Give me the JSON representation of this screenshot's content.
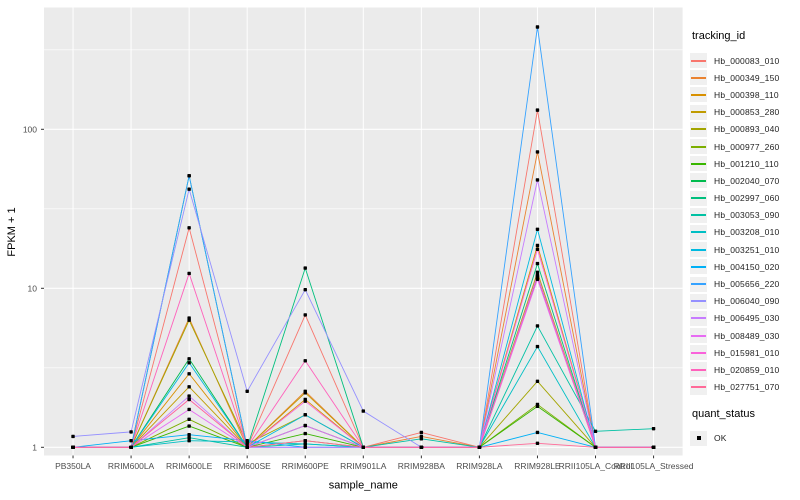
{
  "chart_data": {
    "type": "line",
    "title": "",
    "xlabel": "sample_name",
    "ylabel": "FPKM + 1",
    "y_scale": "log10",
    "y_ticks": [
      1,
      10,
      100
    ],
    "y_tick_labels": [
      "1",
      "10",
      "100"
    ],
    "y_minor_ticks": [
      3.1623,
      31.623,
      316.23
    ],
    "ylim": [
      0.93,
      500
    ],
    "grid": "on",
    "legend_position": "right",
    "categories": [
      "PB350LA",
      "RRIM600LA",
      "RRIM600LE",
      "RRIM600SE",
      "RRIM600PE",
      "RRIM901LA",
      "RRIM928BA",
      "RRIM928LA",
      "RRIM928LE",
      "RRII105LA_Control",
      "RRII105LA_Stressed"
    ],
    "series": [
      {
        "name": "Hb_000083_010",
        "color": "#F8766D",
        "values": [
          1.0,
          1.0,
          24.0,
          1.0,
          6.8,
          1.0,
          1.24,
          1.0,
          132.0,
          1.0,
          1.0
        ]
      },
      {
        "name": "Hb_000349_150",
        "color": "#EA8331",
        "values": [
          1.0,
          1.0,
          6.5,
          1.0,
          2.25,
          1.0,
          1.17,
          1.0,
          72.0,
          1.0,
          1.0
        ]
      },
      {
        "name": "Hb_000398_110",
        "color": "#D89000",
        "values": [
          1.0,
          1.0,
          2.9,
          1.0,
          2.0,
          1.0,
          1.0,
          1.0,
          18.6,
          1.0,
          1.0
        ]
      },
      {
        "name": "Hb_000853_280",
        "color": "#C09B00",
        "values": [
          1.0,
          1.0,
          2.4,
          1.0,
          2.2,
          1.0,
          1.0,
          1.0,
          12.6,
          1.0,
          1.0
        ]
      },
      {
        "name": "Hb_000893_040",
        "color": "#A3A500",
        "values": [
          1.0,
          1.0,
          6.3,
          1.05,
          1.6,
          1.0,
          1.0,
          1.0,
          2.6,
          1.0,
          1.0
        ]
      },
      {
        "name": "Hb_000977_260",
        "color": "#7CAE00",
        "values": [
          1.0,
          1.0,
          1.5,
          1.0,
          1.1,
          1.0,
          1.0,
          1.0,
          1.86,
          1.0,
          1.0
        ]
      },
      {
        "name": "Hb_001210_110",
        "color": "#39B600",
        "values": [
          1.0,
          1.0,
          1.36,
          1.0,
          1.22,
          1.0,
          1.0,
          1.0,
          1.81,
          1.0,
          1.0
        ]
      },
      {
        "name": "Hb_002040_070",
        "color": "#00BB4E",
        "values": [
          1.0,
          1.0,
          3.6,
          1.0,
          1.37,
          1.0,
          1.0,
          1.0,
          11.7,
          1.0,
          1.0
        ]
      },
      {
        "name": "Hb_002997_060",
        "color": "#00BF7D",
        "values": [
          1.0,
          1.0,
          51.0,
          1.0,
          13.4,
          1.0,
          1.0,
          1.0,
          14.3,
          1.0,
          1.0
        ]
      },
      {
        "name": "Hb_003053_090",
        "color": "#00C1A3",
        "values": [
          1.0,
          1.0,
          1.15,
          1.0,
          1.05,
          1.0,
          1.13,
          1.0,
          5.8,
          1.26,
          1.31
        ]
      },
      {
        "name": "Hb_003208_010",
        "color": "#00BFC4",
        "values": [
          1.0,
          1.0,
          1.1,
          1.08,
          1.05,
          1.0,
          1.0,
          1.0,
          4.3,
          1.0,
          1.0
        ]
      },
      {
        "name": "Hb_003251_010",
        "color": "#00BAE0",
        "values": [
          1.0,
          1.0,
          3.4,
          1.0,
          1.6,
          1.0,
          1.0,
          1.0,
          23.5,
          1.0,
          1.0
        ]
      },
      {
        "name": "Hb_004150_020",
        "color": "#00B0F6",
        "values": [
          1.0,
          1.1,
          1.2,
          1.1,
          1.0,
          1.0,
          1.0,
          1.0,
          1.24,
          1.0,
          1.0
        ]
      },
      {
        "name": "Hb_005656_220",
        "color": "#35A2FF",
        "values": [
          1.0,
          1.0,
          51.0,
          1.0,
          1.0,
          1.0,
          1.0,
          1.0,
          440.0,
          1.0,
          1.0
        ]
      },
      {
        "name": "Hb_006040_090",
        "color": "#9590FF",
        "values": [
          1.17,
          1.25,
          42.0,
          2.25,
          9.8,
          1.69,
          1.0,
          1.0,
          12.1,
          1.0,
          1.0
        ]
      },
      {
        "name": "Hb_006495_030",
        "color": "#C77CFF",
        "values": [
          1.0,
          1.0,
          2.1,
          1.0,
          1.0,
          1.0,
          1.0,
          1.0,
          48.0,
          1.0,
          1.0
        ]
      },
      {
        "name": "Hb_008489_030",
        "color": "#E76BF3",
        "values": [
          1.0,
          1.0,
          1.73,
          1.0,
          1.37,
          1.0,
          1.0,
          1.0,
          11.4,
          1.0,
          1.0
        ]
      },
      {
        "name": "Hb_015981_010",
        "color": "#FA62DB",
        "values": [
          1.0,
          1.0,
          2.0,
          1.0,
          1.95,
          1.0,
          1.0,
          1.0,
          17.6,
          1.0,
          1.0
        ]
      },
      {
        "name": "Hb_020859_010",
        "color": "#FF62BC",
        "values": [
          1.0,
          1.0,
          12.4,
          1.0,
          3.5,
          1.0,
          1.0,
          1.0,
          11.9,
          1.0,
          1.0
        ]
      },
      {
        "name": "Hb_027751_070",
        "color": "#FF6A98",
        "values": [
          1.0,
          1.0,
          2.0,
          1.0,
          1.1,
          1.0,
          1.0,
          1.0,
          1.06,
          1.0,
          1.0
        ]
      }
    ],
    "legend": {
      "color_title": "tracking_id",
      "shape_title": "quant_status",
      "shape_items": [
        {
          "label": "OK",
          "marker": "black-square"
        }
      ]
    },
    "style": {
      "panel_bg": "#EBEBEB",
      "grid_color": "#FFFFFF",
      "point_color": "#000000",
      "axis_text_color": "#4D4D4D",
      "title_text_color": "#000000",
      "legend_key_bg": "#F0F0F0"
    }
  }
}
